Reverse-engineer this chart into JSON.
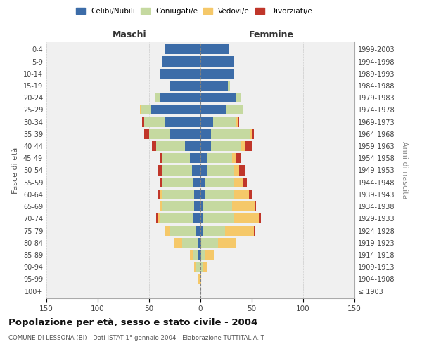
{
  "age_groups": [
    "100+",
    "95-99",
    "90-94",
    "85-89",
    "80-84",
    "75-79",
    "70-74",
    "65-69",
    "60-64",
    "55-59",
    "50-54",
    "45-49",
    "40-44",
    "35-39",
    "30-34",
    "25-29",
    "20-24",
    "15-19",
    "10-14",
    "5-9",
    "0-4"
  ],
  "birth_years": [
    "≤ 1903",
    "1904-1908",
    "1909-1913",
    "1914-1918",
    "1919-1923",
    "1924-1928",
    "1929-1933",
    "1934-1938",
    "1939-1943",
    "1944-1948",
    "1949-1953",
    "1954-1958",
    "1959-1963",
    "1964-1968",
    "1969-1973",
    "1974-1978",
    "1979-1983",
    "1984-1988",
    "1989-1993",
    "1994-1998",
    "1999-2003"
  ],
  "maschi": {
    "celibi": [
      0,
      0,
      1,
      2,
      3,
      5,
      7,
      6,
      6,
      7,
      8,
      10,
      15,
      30,
      35,
      48,
      40,
      30,
      40,
      38,
      35
    ],
    "coniugati": [
      0,
      1,
      3,
      5,
      15,
      25,
      32,
      32,
      32,
      30,
      30,
      27,
      28,
      20,
      20,
      10,
      4,
      0,
      0,
      0,
      0
    ],
    "vedovi": [
      0,
      1,
      2,
      3,
      8,
      4,
      2,
      1,
      1,
      0,
      0,
      0,
      0,
      0,
      0,
      1,
      0,
      0,
      0,
      0,
      0
    ],
    "divorziati": [
      0,
      0,
      0,
      0,
      0,
      1,
      2,
      1,
      2,
      2,
      4,
      3,
      4,
      5,
      2,
      0,
      0,
      0,
      0,
      0,
      0
    ]
  },
  "femmine": {
    "nubili": [
      0,
      0,
      0,
      1,
      1,
      2,
      2,
      3,
      4,
      5,
      6,
      6,
      10,
      10,
      12,
      25,
      35,
      27,
      32,
      32,
      28
    ],
    "coniugate": [
      0,
      0,
      2,
      4,
      16,
      22,
      30,
      28,
      28,
      28,
      27,
      25,
      30,
      38,
      22,
      16,
      4,
      2,
      0,
      0,
      0
    ],
    "vedove": [
      0,
      1,
      5,
      8,
      18,
      28,
      25,
      22,
      15,
      8,
      5,
      4,
      3,
      2,
      2,
      0,
      0,
      0,
      0,
      0,
      0
    ],
    "divorziate": [
      0,
      0,
      0,
      0,
      0,
      1,
      2,
      1,
      3,
      4,
      5,
      4,
      7,
      2,
      2,
      0,
      0,
      0,
      0,
      0,
      0
    ]
  },
  "colors": {
    "celibi": "#3C6CA8",
    "coniugati": "#C5D9A0",
    "vedovi": "#F5C869",
    "divorziati": "#C0362A"
  },
  "title": "Popolazione per età, sesso e stato civile - 2004",
  "subtitle": "COMUNE DI LESSONA (BI) - Dati ISTAT 1° gennaio 2004 - Elaborazione TUTTITALIA.IT",
  "xlabel_left": "Maschi",
  "xlabel_right": "Femmine",
  "ylabel_left": "Fasce di età",
  "ylabel_right": "Anni di nascita",
  "xlim": 150,
  "background_color": "#ffffff",
  "grid_color": "#cccccc",
  "legend_labels": [
    "Celibi/Nubili",
    "Coniugati/e",
    "Vedovi/e",
    "Divorziati/e"
  ]
}
